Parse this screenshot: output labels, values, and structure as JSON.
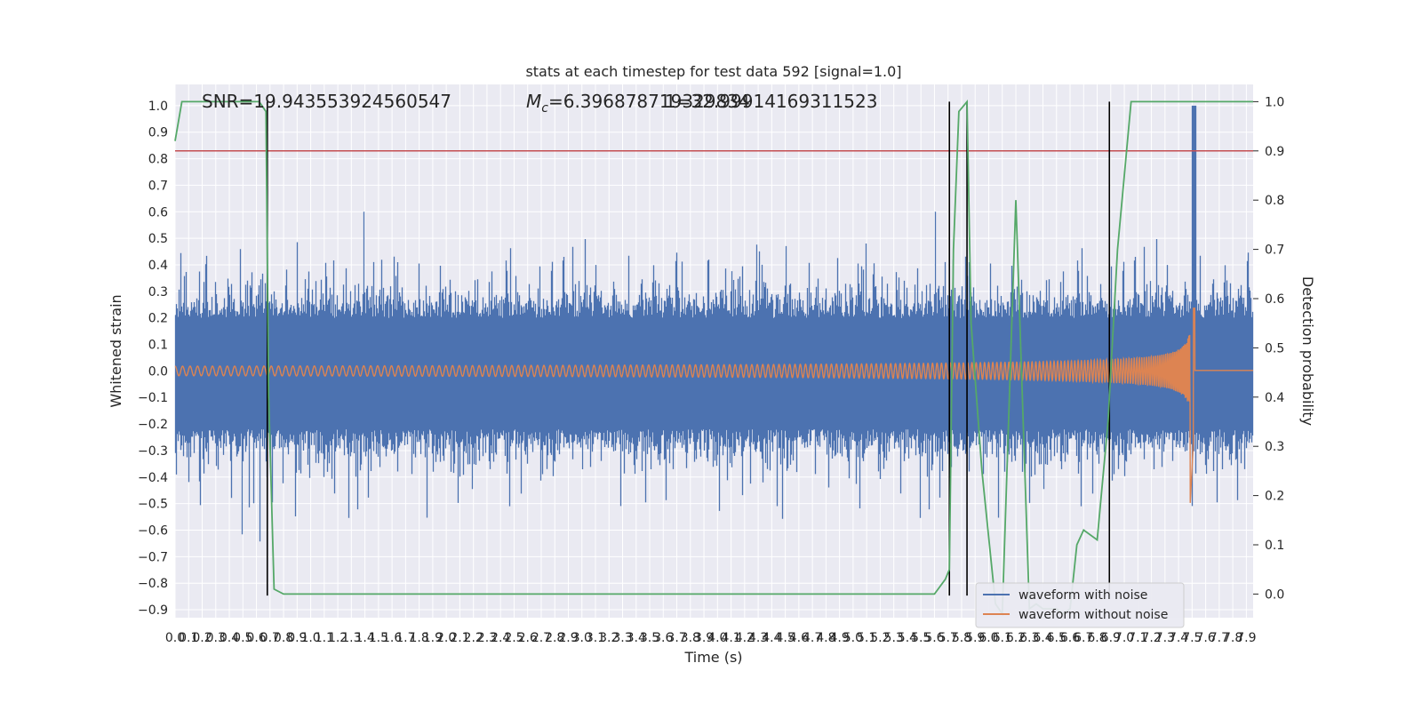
{
  "chart_data": {
    "type": "line",
    "title": "stats at each timestep for test data 592 [signal=1.0]",
    "xlabel": "Time (s)",
    "ylabel": "Whitened strain",
    "y2label": "Detection probability",
    "xlim": [
      0.0,
      7.95
    ],
    "ylim": [
      -0.93,
      1.08
    ],
    "y2lim": [
      -0.048,
      1.035
    ],
    "x_ticks": [
      "0.0",
      "0.1",
      "0.2",
      "0.3",
      "0.4",
      "0.5",
      "0.6",
      "0.7",
      "0.8",
      "0.9",
      "1.0",
      "1.1",
      "1.2",
      "1.3",
      "1.4",
      "1.5",
      "1.6",
      "1.7",
      "1.8",
      "1.9",
      "2.0",
      "2.1",
      "2.2",
      "2.3",
      "2.4",
      "2.5",
      "2.6",
      "2.7",
      "2.8",
      "2.9",
      "3.0",
      "3.1",
      "3.2",
      "3.3",
      "3.4",
      "3.5",
      "3.6",
      "3.7",
      "3.8",
      "3.9",
      "4.0",
      "4.1",
      "4.2",
      "4.3",
      "4.4",
      "4.5",
      "4.6",
      "4.7",
      "4.8",
      "4.9",
      "5.0",
      "5.1",
      "5.2",
      "5.3",
      "5.4",
      "5.5",
      "5.6",
      "5.7",
      "5.8",
      "5.9",
      "6.0",
      "6.1",
      "6.2",
      "6.3",
      "6.4",
      "6.5",
      "6.6",
      "6.7",
      "6.8",
      "6.9",
      "7.0",
      "7.1",
      "7.2",
      "7.3",
      "7.4",
      "7.5",
      "7.6",
      "7.7",
      "7.8",
      "7.9"
    ],
    "y_ticks": [
      "1.0",
      "0.9",
      "0.8",
      "0.7",
      "0.6",
      "0.5",
      "0.4",
      "0.3",
      "0.2",
      "0.1",
      "0.0",
      "−0.1",
      "−0.2",
      "−0.3",
      "−0.4",
      "−0.5",
      "−0.6",
      "−0.7",
      "−0.8",
      "−0.9"
    ],
    "y2_ticks": [
      "1.0",
      "0.9",
      "0.8",
      "0.7",
      "0.6",
      "0.5",
      "0.4",
      "0.3",
      "0.2",
      "0.1",
      "0.0"
    ],
    "annotations": {
      "snr": "SNR=19.943553924560547",
      "mc_symbol": "M",
      "mc_sub": "c",
      "mc_value": "=6.396878719329834",
      "mc_overlap": "1=32.99914169311523"
    },
    "threshold": 0.9,
    "vertical_markers": [
      0.68,
      5.71,
      5.84,
      6.89
    ],
    "legend": {
      "placement": "lower-right",
      "entries": [
        "waveform with noise",
        "waveform without noise"
      ]
    },
    "series": [
      {
        "name": "waveform with noise",
        "color": "#4c72b0",
        "amplitude_range": [
          -0.82,
          1.0
        ]
      },
      {
        "name": "waveform without noise",
        "color": "#dd8452",
        "amplitude_range": [
          -0.51,
          0.41
        ],
        "merger_time": 7.5
      },
      {
        "name": "",
        "color": "#55a868",
        "axis": "right",
        "x": [
          0.0,
          0.05,
          0.1,
          0.15,
          0.3,
          0.5,
          0.62,
          0.67,
          0.69,
          0.73,
          0.8,
          1.0,
          3.0,
          5.6,
          5.68,
          5.71,
          5.74,
          5.78,
          5.84,
          5.87,
          5.95,
          6.05,
          6.1,
          6.2,
          6.3,
          6.35,
          6.4,
          6.5,
          6.55,
          6.6,
          6.65,
          6.7,
          6.8,
          6.88,
          6.95,
          7.05,
          7.95
        ],
        "y": [
          0.92,
          1.0,
          1.0,
          1.0,
          1.0,
          1.0,
          1.0,
          0.98,
          0.4,
          0.01,
          0.0,
          0.0,
          0.0,
          0.0,
          0.03,
          0.05,
          0.7,
          0.98,
          1.0,
          0.55,
          0.25,
          -0.02,
          -0.04,
          0.8,
          -0.03,
          -0.02,
          -0.03,
          -0.03,
          -0.04,
          -0.03,
          0.1,
          0.13,
          0.11,
          0.35,
          0.7,
          1.0,
          1.0
        ]
      },
      {
        "name": "",
        "color": "#c44e52",
        "axis": "right",
        "x": [
          0.0,
          7.95
        ],
        "y": [
          0.9,
          0.9
        ]
      }
    ]
  }
}
